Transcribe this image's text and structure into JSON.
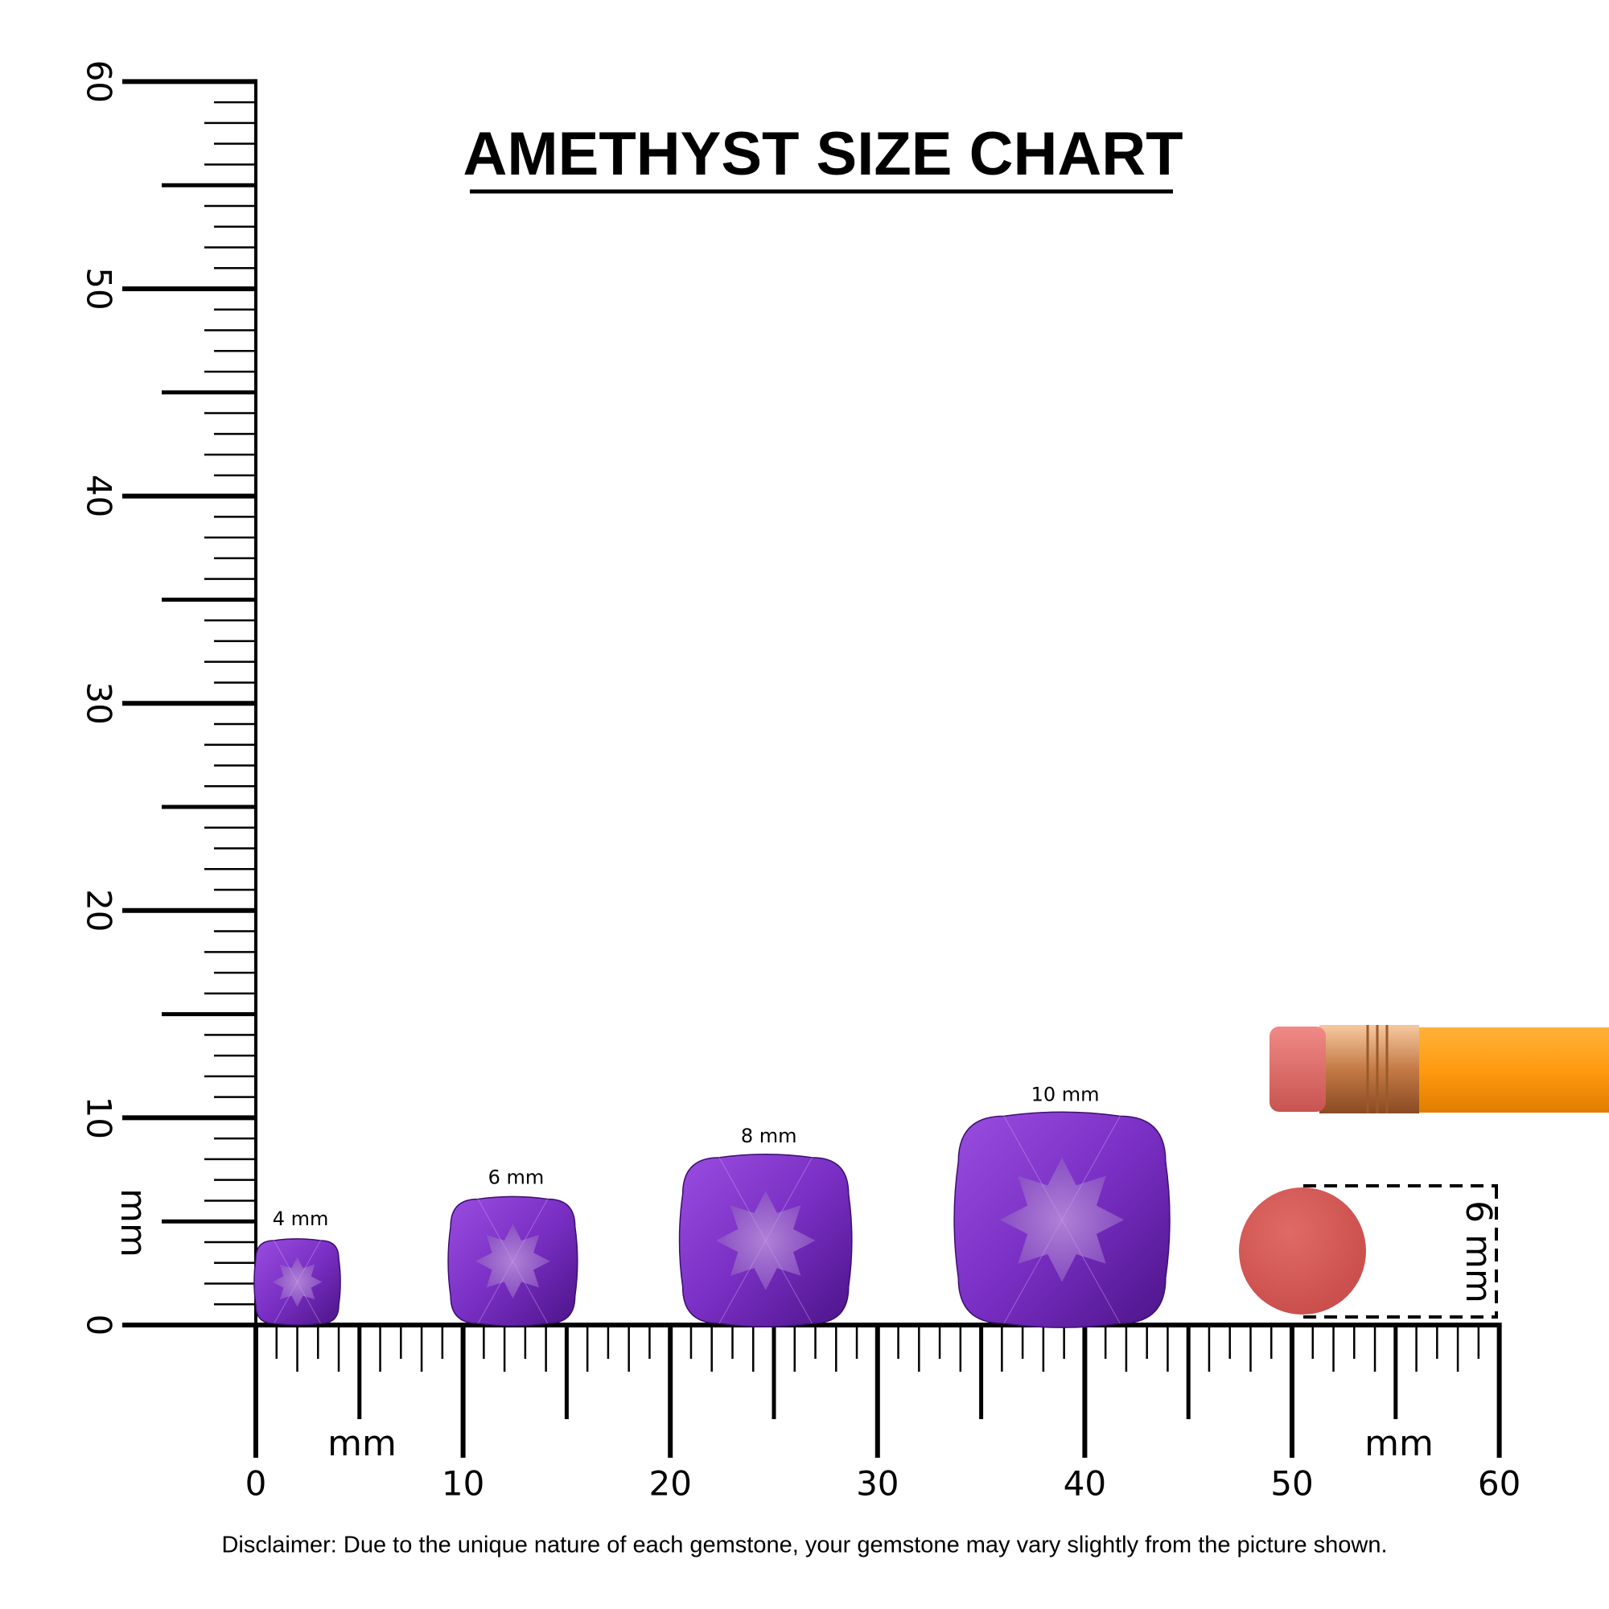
{
  "title": "AMETHYST SIZE CHART",
  "ruler": {
    "unit": "mm",
    "range": [
      0,
      60
    ],
    "labels": [
      0,
      10,
      20,
      30,
      40,
      50,
      60
    ]
  },
  "gems": [
    {
      "label": "4 mm",
      "size": 4
    },
    {
      "label": "6 mm",
      "size": 6
    },
    {
      "label": "8 mm",
      "size": 8
    },
    {
      "label": "10 mm",
      "size": 10
    }
  ],
  "eraser": {
    "label": "6 mm",
    "size": 6
  },
  "disclaimer": "Disclaimer: Due to the unique nature of each gemstone, your gemstone may vary slightly from the picture shown."
}
